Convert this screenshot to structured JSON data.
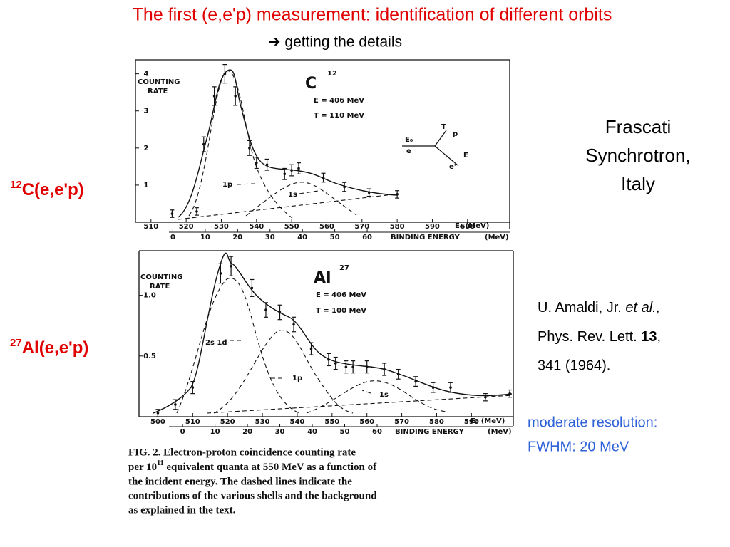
{
  "slide": {
    "title": "The first (e,e'p) measurement: identification of different orbits",
    "subtitle": "➔ getting the details",
    "reaction_top": {
      "sup": "12",
      "text": "C(e,e'p)"
    },
    "reaction_bottom": {
      "sup": "27",
      "text": "Al(e,e'p)"
    },
    "lab": [
      "Frascati",
      "Synchrotron,",
      "Italy"
    ],
    "reference": {
      "authors": "U. Amaldi, Jr. ",
      "etal": "et al.,",
      "journal": "Phys. Rev. Lett. ",
      "volume": "13",
      "comma": ",",
      "pages": "341 (1964)."
    },
    "note": [
      "moderate resolution:",
      "FWHM: 20 MeV"
    ]
  },
  "chart_data": [
    {
      "type": "scatter",
      "ylabel": [
        "COUNTING",
        "RATE"
      ],
      "nucleus": "C",
      "mass": "12",
      "beam": "E = 406 MeV",
      "proton": "T = 110 MeV",
      "shells": [
        "1p",
        "1s"
      ],
      "diagram": [
        "E₀",
        "e",
        "T",
        "p",
        "E",
        "e'"
      ],
      "xlabel": "E₀ (MeV)",
      "x2label": "BINDING ENERGY",
      "x2unit": "(MeV)",
      "x": [
        516,
        523,
        525,
        528,
        531,
        534,
        538,
        540,
        543,
        548,
        550,
        552,
        559,
        565,
        572,
        580
      ],
      "values": [
        0.23,
        0.29,
        2.1,
        3.4,
        4.0,
        3.4,
        2.0,
        1.6,
        1.55,
        1.3,
        1.4,
        1.45,
        1.2,
        0.95,
        0.8,
        0.75
      ],
      "errors": [
        0.1,
        0.1,
        0.2,
        0.25,
        0.25,
        0.25,
        0.2,
        0.15,
        0.15,
        0.15,
        0.15,
        0.15,
        0.12,
        0.12,
        0.1,
        0.1
      ],
      "xlim": [
        507,
        612
      ],
      "xticks": [
        510,
        520,
        530,
        540,
        550,
        560,
        570,
        580,
        590,
        600
      ],
      "x2lim": [
        -10,
        104
      ],
      "x2ticks": [
        0,
        10,
        20,
        30,
        40,
        50,
        60
      ],
      "ylim": [
        0,
        4.3
      ],
      "yticks": [
        1,
        2,
        3,
        4
      ],
      "color": "#111111"
    },
    {
      "type": "scatter",
      "ylabel": [
        "COUNTING",
        "RATE"
      ],
      "nucleus": "Al",
      "mass": "27",
      "beam": "E = 406 MeV",
      "proton": "T = 100 MeV",
      "shells": [
        "2s 1d",
        "1p",
        "1s"
      ],
      "xlabel": "E₀ (MeV)",
      "x2label": "BINDING ENERGY",
      "x2unit": "(MeV)",
      "x": [
        500,
        505,
        510,
        518,
        521,
        527,
        531,
        535,
        539,
        544,
        549,
        551,
        554,
        556,
        560,
        565,
        569,
        574,
        579,
        584,
        594,
        601
      ],
      "values": [
        0.03,
        0.1,
        0.24,
        1.18,
        1.24,
        1.06,
        0.88,
        0.86,
        0.76,
        0.56,
        0.47,
        0.44,
        0.41,
        0.41,
        0.41,
        0.39,
        0.35,
        0.29,
        0.24,
        0.24,
        0.16,
        0.19
      ],
      "errors": [
        0.03,
        0.04,
        0.05,
        0.08,
        0.08,
        0.07,
        0.06,
        0.06,
        0.06,
        0.05,
        0.05,
        0.05,
        0.05,
        0.05,
        0.05,
        0.05,
        0.04,
        0.04,
        0.04,
        0.04,
        0.03,
        0.03
      ],
      "xlim": [
        495,
        602
      ],
      "xticks": [
        500,
        510,
        520,
        530,
        540,
        550,
        560,
        570,
        580,
        590
      ],
      "x2lim": [
        -13,
        102
      ],
      "x2ticks": [
        0,
        10,
        20,
        30,
        40,
        50,
        60
      ],
      "ylim": [
        0,
        1.35
      ],
      "yticks": [
        {
          "value": 0.5,
          "label": "0.5"
        },
        {
          "value": 1.0,
          "label": "1.0"
        }
      ],
      "color": "#111111"
    }
  ],
  "caption": [
    "FIG. 2.   Electron-proton coincidence counting rate",
    {
      "pre": "per 10",
      "sup": "11",
      "post": " equivalent quanta at 550 MeV as a function of"
    },
    "the incident energy.   The dashed lines indicate the",
    "contributions of the various shells and the background",
    "as explained in the text."
  ]
}
